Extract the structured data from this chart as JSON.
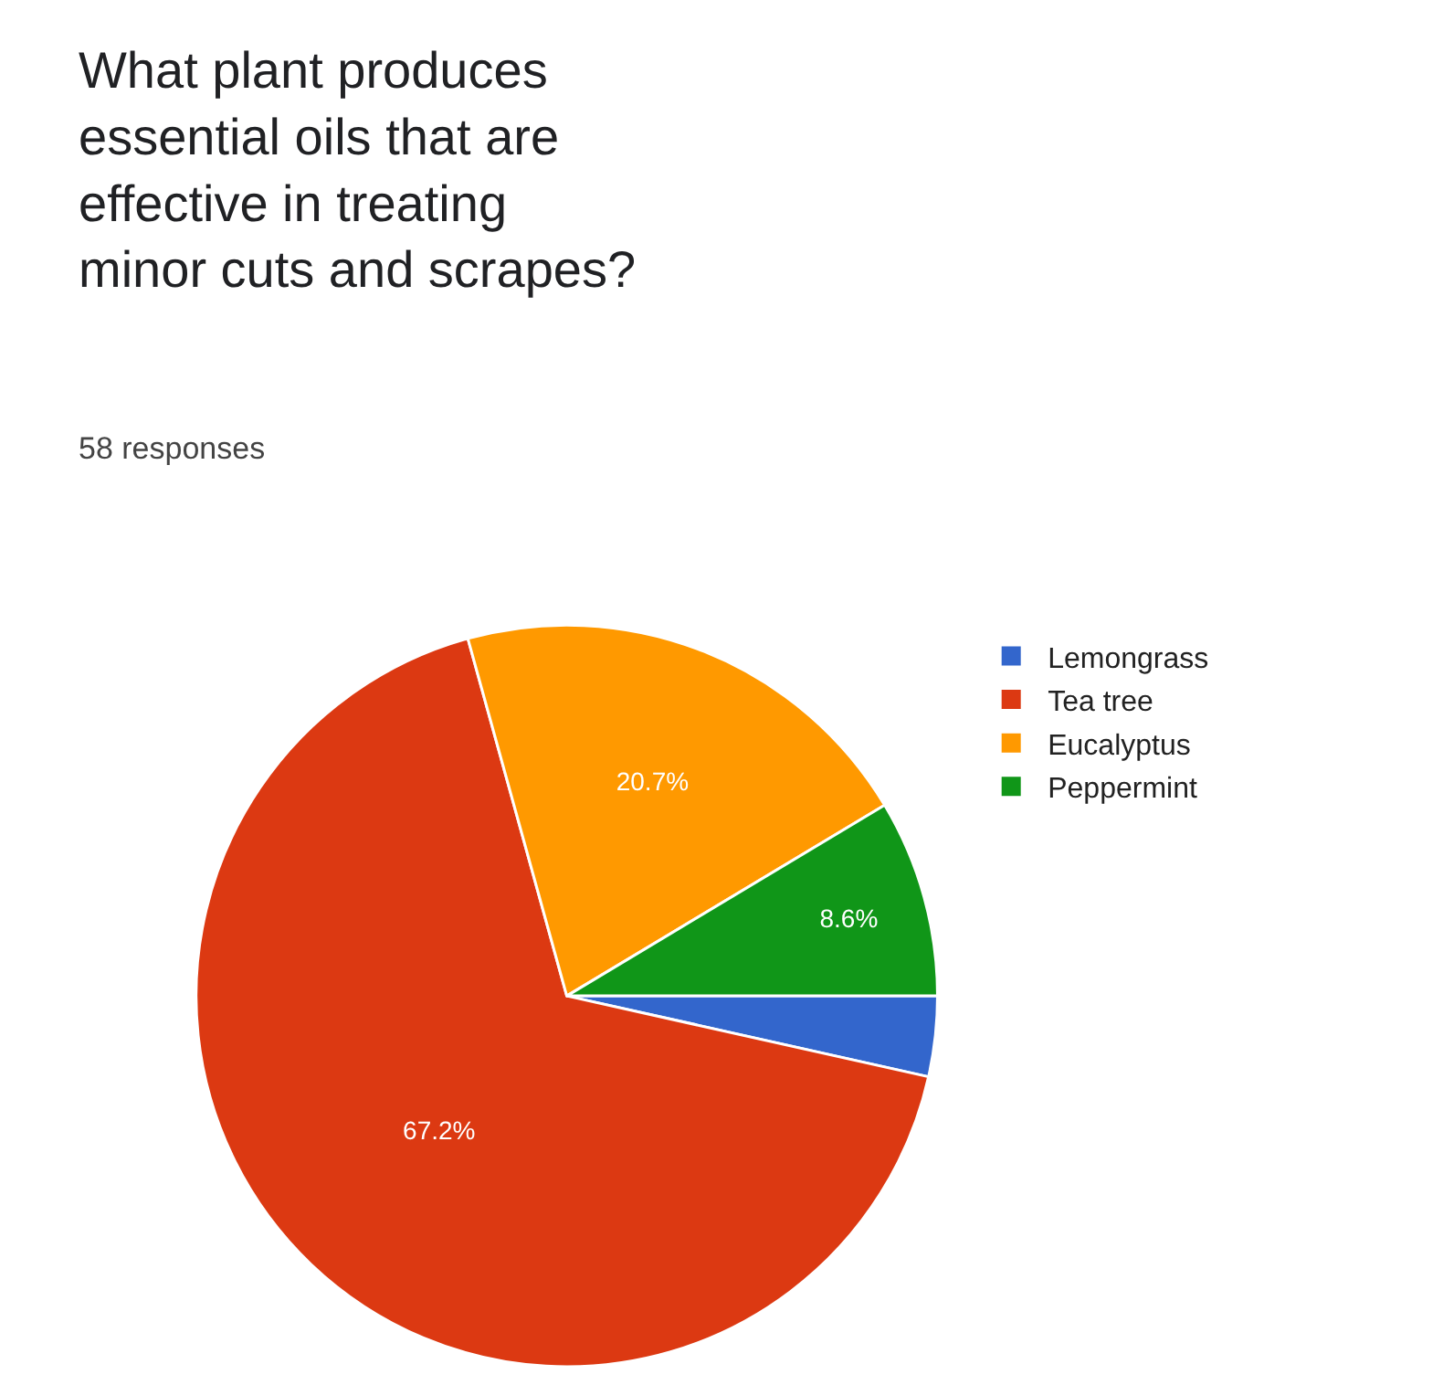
{
  "chart_data": {
    "type": "pie",
    "title": "What plant produces essential oils that are effective in treating minor cuts and scrapes?",
    "subtitle": "58 responses",
    "categories": [
      "Lemongrass",
      "Tea tree",
      "Eucalyptus",
      "Peppermint"
    ],
    "values": [
      3.5,
      67.2,
      20.7,
      8.6
    ],
    "colors": [
      "#3366cc",
      "#dc3912",
      "#ff9900",
      "#109618"
    ],
    "value_labels": [
      null,
      "67.2%",
      "20.7%",
      "8.6%"
    ],
    "legend": "right"
  }
}
